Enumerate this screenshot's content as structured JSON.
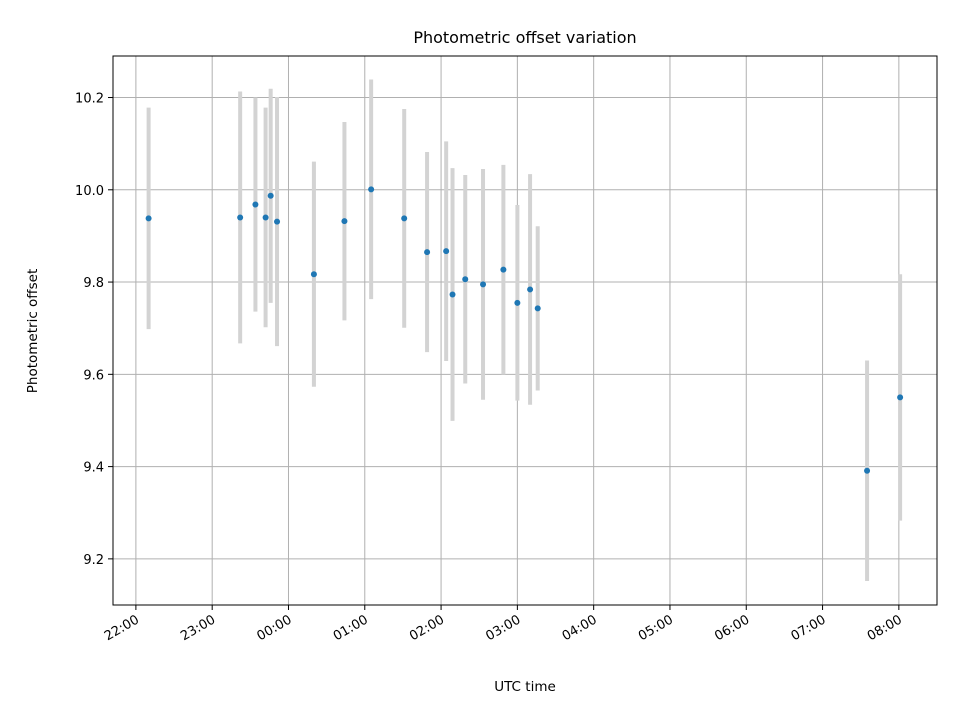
{
  "chart_data": {
    "type": "scatter",
    "title": "Photometric offset variation",
    "xlabel": "UTC time",
    "ylabel": "Photometric offset",
    "x_axis_type": "time",
    "xlim": [
      "21:42",
      "08:30"
    ],
    "ylim": [
      9.1,
      10.29
    ],
    "grid": true,
    "legend": "none",
    "x_ticks": [
      "22:00",
      "23:00",
      "00:00",
      "01:00",
      "02:00",
      "03:00",
      "04:00",
      "05:00",
      "06:00",
      "07:00",
      "08:00"
    ],
    "y_ticks": [
      "9.2",
      "9.4",
      "9.6",
      "9.8",
      "10.0",
      "10.2"
    ],
    "colors": {
      "point": "#1f77b4",
      "errorbar": "#d3d3d3",
      "grid": "#b0b0b0"
    },
    "series": [
      {
        "points": [
          {
            "x": "22:10",
            "y": 9.938,
            "err": 0.24
          },
          {
            "x": "23:22",
            "y": 9.94,
            "err": 0.273
          },
          {
            "x": "23:34",
            "y": 9.968,
            "err": 0.232
          },
          {
            "x": "23:42",
            "y": 9.94,
            "err": 0.238
          },
          {
            "x": "23:46",
            "y": 9.987,
            "err": 0.232
          },
          {
            "x": "23:51",
            "y": 9.931,
            "err": 0.27
          },
          {
            "x": "00:20",
            "y": 9.817,
            "err": 0.244
          },
          {
            "x": "00:44",
            "y": 9.932,
            "err": 0.215
          },
          {
            "x": "01:05",
            "y": 10.001,
            "err": 0.238
          },
          {
            "x": "01:31",
            "y": 9.938,
            "err": 0.237
          },
          {
            "x": "01:49",
            "y": 9.865,
            "err": 0.217
          },
          {
            "x": "02:04",
            "y": 9.867,
            "err": 0.238
          },
          {
            "x": "02:09",
            "y": 9.773,
            "err": 0.274
          },
          {
            "x": "02:19",
            "y": 9.806,
            "err": 0.226
          },
          {
            "x": "02:33",
            "y": 9.795,
            "err": 0.25
          },
          {
            "x": "02:49",
            "y": 9.827,
            "err": 0.227
          },
          {
            "x": "03:00",
            "y": 9.755,
            "err": 0.212
          },
          {
            "x": "03:10",
            "y": 9.784,
            "err": 0.25
          },
          {
            "x": "03:16",
            "y": 9.743,
            "err": 0.178
          },
          {
            "x": "07:35",
            "y": 9.391,
            "err": 0.239
          },
          {
            "x": "08:01",
            "y": 9.55,
            "err": 0.267
          }
        ]
      }
    ]
  }
}
